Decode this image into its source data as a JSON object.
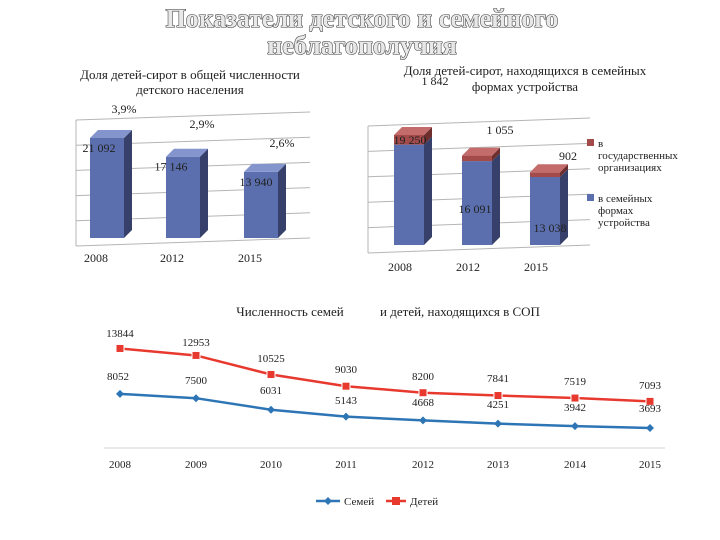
{
  "title": {
    "line1": "Показатели детского и семейного",
    "line2": "неблагополучия"
  },
  "chart_data": [
    {
      "type": "bar",
      "title": "Доля детей-сирот в общей численности детского населения",
      "title_line1": "Доля детей-сирот в общей численности",
      "title_line2": "детского населения",
      "categories": [
        "2008",
        "2012",
        "2015"
      ],
      "values": [
        21092,
        17146,
        13940
      ],
      "value_labels": [
        "21 092",
        "17 146",
        "13 940"
      ],
      "percent_labels": [
        "3,9%",
        "2,9%",
        "2,6%"
      ],
      "colors": {
        "front": "#5b6fae",
        "side": "#36406b",
        "top": "#8494cd"
      }
    },
    {
      "type": "bar",
      "stacked": true,
      "title": "Доля детей-сирот, находящихся в семейных формах устройства",
      "title_line1": "Доля детей-сирот, находящихся в семейных",
      "title_line2": "формах устройства",
      "categories": [
        "2008",
        "2012",
        "2015"
      ],
      "series": [
        {
          "name": "в семейных формах устройства",
          "values": [
            19250,
            16091,
            13038
          ],
          "labels": [
            "19 250",
            "16 091",
            "13 038"
          ],
          "color": "#5b6fae"
        },
        {
          "name": "в государственных организациях",
          "values": [
            1842,
            1055,
            902
          ],
          "labels": [
            "1 842",
            "1 055",
            "902"
          ],
          "color": "#a34a4a"
        }
      ],
      "legend": [
        {
          "label_lines": [
            "в",
            "государственных",
            "организациях"
          ],
          "color": "#a34a4a"
        },
        {
          "label_lines": [
            "в семейных",
            "формах",
            "устройства"
          ],
          "color": "#5b6fae"
        }
      ]
    },
    {
      "type": "line",
      "title": "Численность семей и детей, находящихся в СОП",
      "title_part1": "Численность семей",
      "title_part2": "и детей, находящихся в СОП",
      "x": [
        "2008",
        "2009",
        "2010",
        "2011",
        "2012",
        "2013",
        "2014",
        "2015"
      ],
      "series": [
        {
          "name": "Семей",
          "values": [
            8052,
            7500,
            6031,
            5143,
            4668,
            4251,
            3942,
            3693
          ],
          "color": "#2e75b6"
        },
        {
          "name": "Детей",
          "values": [
            13844,
            12953,
            10525,
            9030,
            8200,
            7841,
            7519,
            7093
          ],
          "color": "#e8392f"
        }
      ],
      "legend": [
        "Семей",
        "Детей"
      ]
    }
  ]
}
